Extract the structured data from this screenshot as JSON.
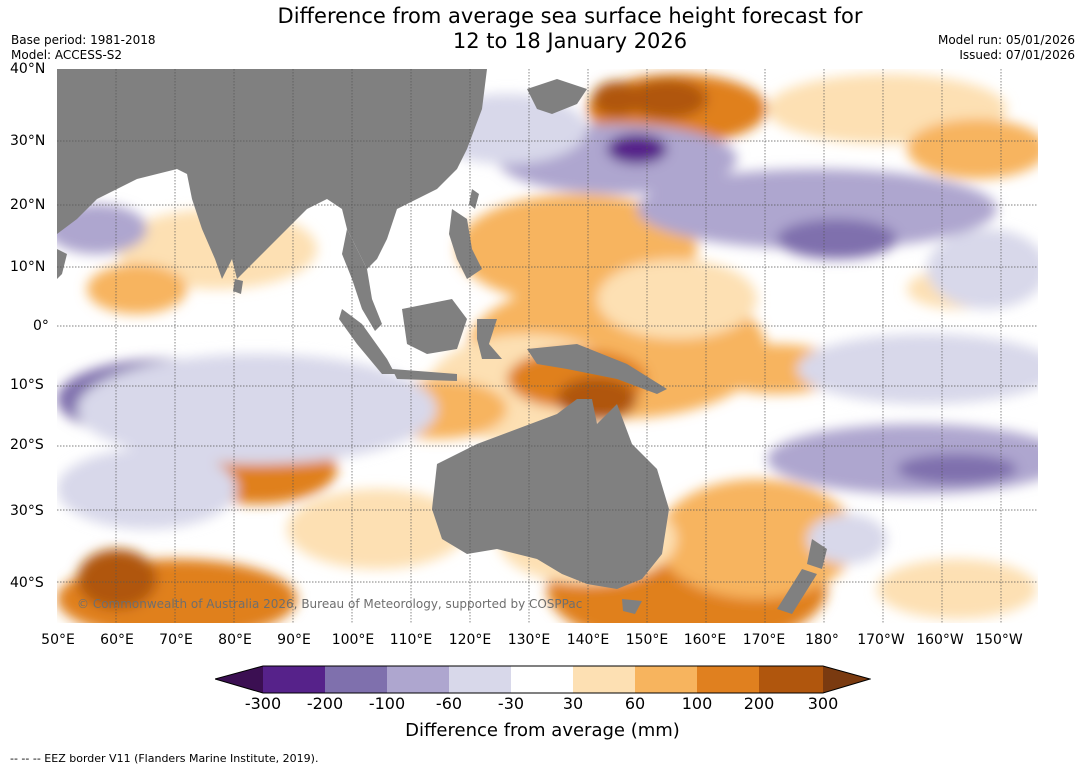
{
  "title_line1": "Difference from average sea surface height forecast for",
  "title_line2": "12 to 18 January 2026",
  "base_period": "Base period: 1981-2018",
  "model": "Model: ACCESS-S2",
  "model_run": "Model run: 05/01/2026",
  "issued": "Issued: 07/01/2026",
  "lat_labels": [
    "40°N",
    "30°N",
    "20°N",
    "10°N",
    "0°",
    "10°S",
    "20°S",
    "30°S",
    "40°S"
  ],
  "lon_labels": [
    "50°E",
    "60°E",
    "70°E",
    "80°E",
    "90°E",
    "100°E",
    "110°E",
    "120°E",
    "130°E",
    "140°E",
    "150°E",
    "160°E",
    "170°E",
    "180°",
    "170°W",
    "160°W",
    "150°W"
  ],
  "copyright": "© Commonwealth of Australia 2026, Bureau of Meteorology, supported by COSPPac",
  "legend": {
    "title": "Difference from average (mm)",
    "ticks": [
      "-300",
      "-200",
      "-100",
      "-60",
      "-30",
      "30",
      "60",
      "100",
      "200",
      "300"
    ],
    "colors": [
      "#3b0f52",
      "#56228a",
      "#7f70ad",
      "#aea6cf",
      "#d8d8ea",
      "#ffffff",
      "#fde0b3",
      "#f7b45e",
      "#e0801f",
      "#b0560d",
      "#7a3a10"
    ]
  },
  "footnote": "--  --  -- EEZ border V11 (Flanders Marine Institute, 2019).",
  "colors": {
    "land": "#808080",
    "grid": "#555555"
  }
}
